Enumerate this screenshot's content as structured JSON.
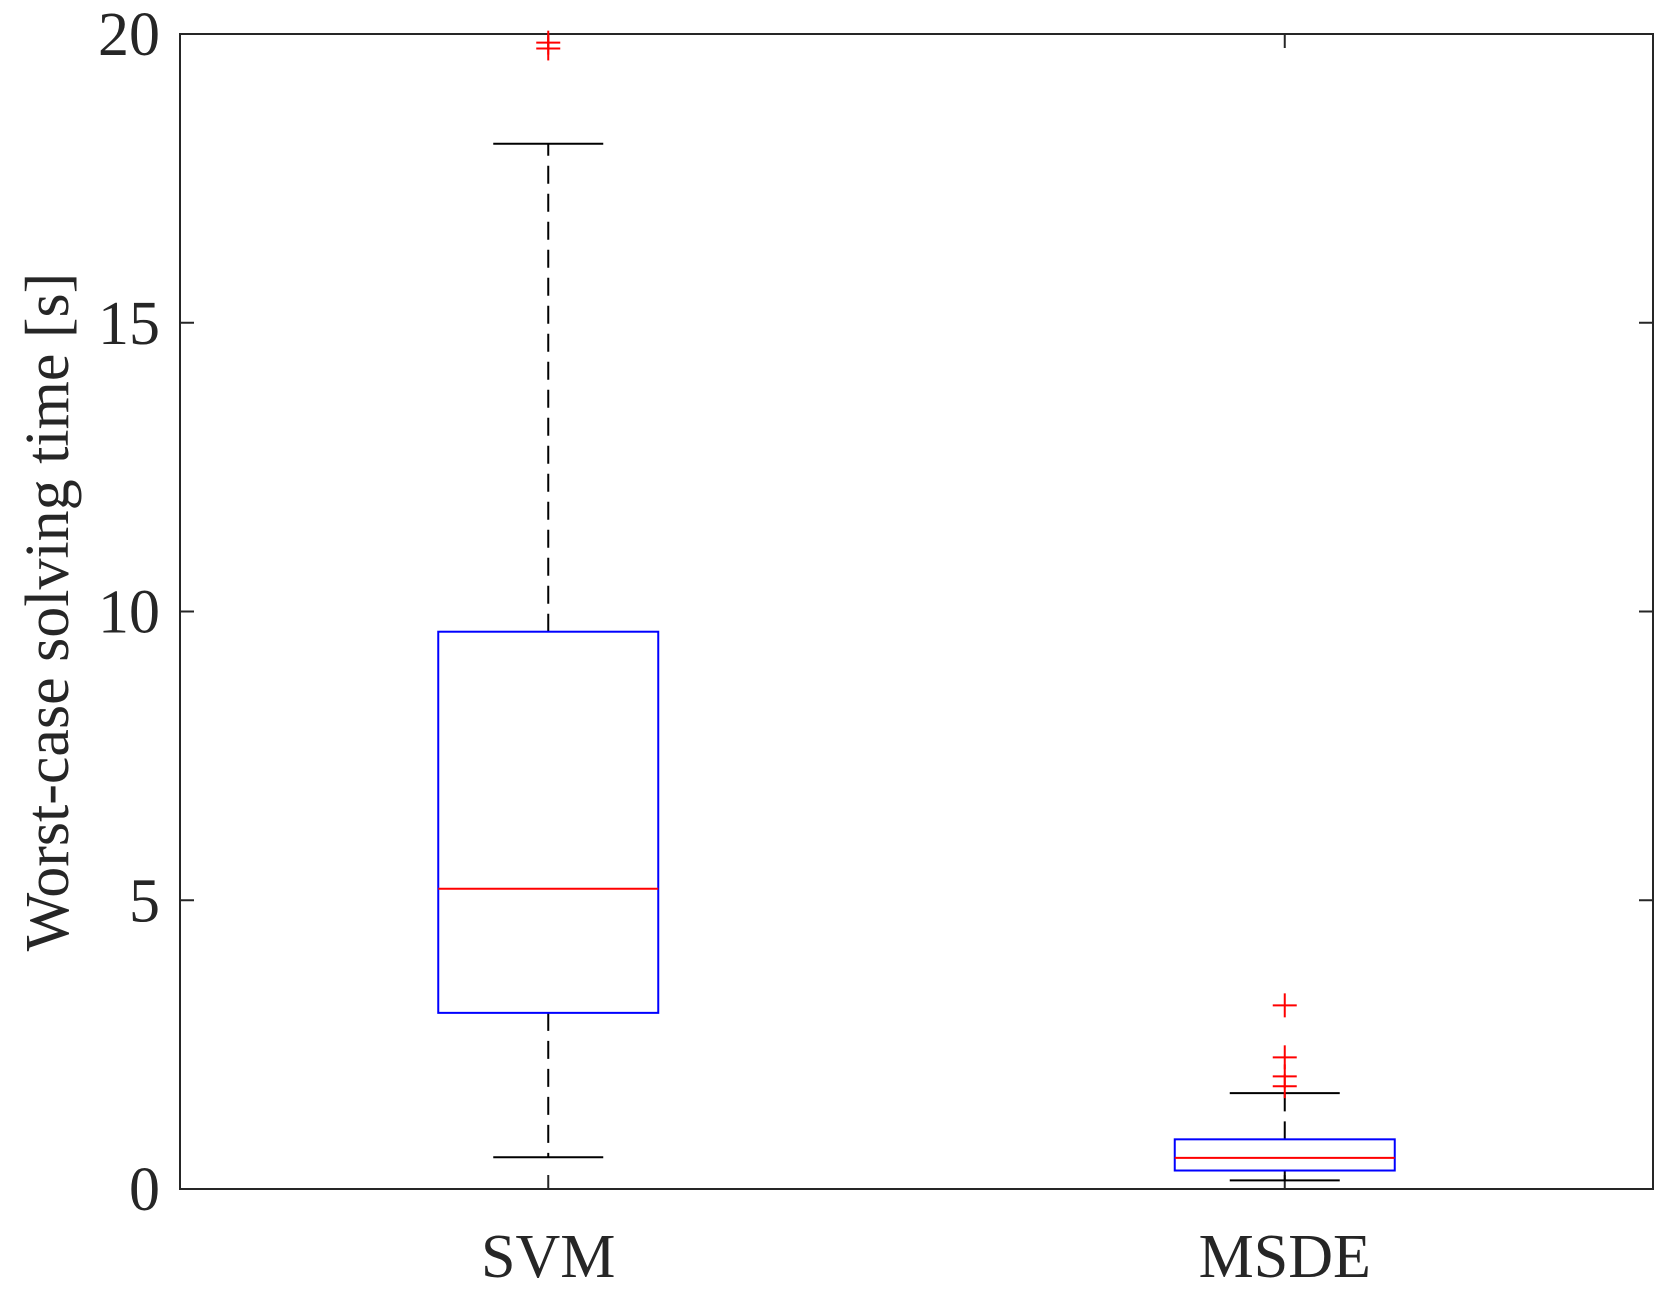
{
  "chart_data": {
    "type": "boxplot",
    "ylabel": "Worst-case solving time [s]",
    "xlabel": "",
    "ylim": [
      0,
      20
    ],
    "yticks": [
      0,
      5,
      10,
      15,
      20
    ],
    "grid": false,
    "categories": [
      "SVM",
      "MSDE"
    ],
    "boxes": [
      {
        "category": "SVM",
        "whisker_low": 0.55,
        "q1": 3.05,
        "median": 5.2,
        "q3": 9.65,
        "whisker_high": 18.1,
        "outliers": [
          19.75,
          19.85
        ]
      },
      {
        "category": "MSDE",
        "whisker_low": 0.15,
        "q1": 0.32,
        "median": 0.54,
        "q3": 0.86,
        "whisker_high": 1.66,
        "outliers": [
          1.78,
          1.95,
          2.28,
          3.18
        ]
      }
    ],
    "colors": {
      "box": "#0000ff",
      "median": "#ff0000",
      "whisker": "#000000",
      "outlier": "#ff0000",
      "axis": "#262626"
    }
  }
}
